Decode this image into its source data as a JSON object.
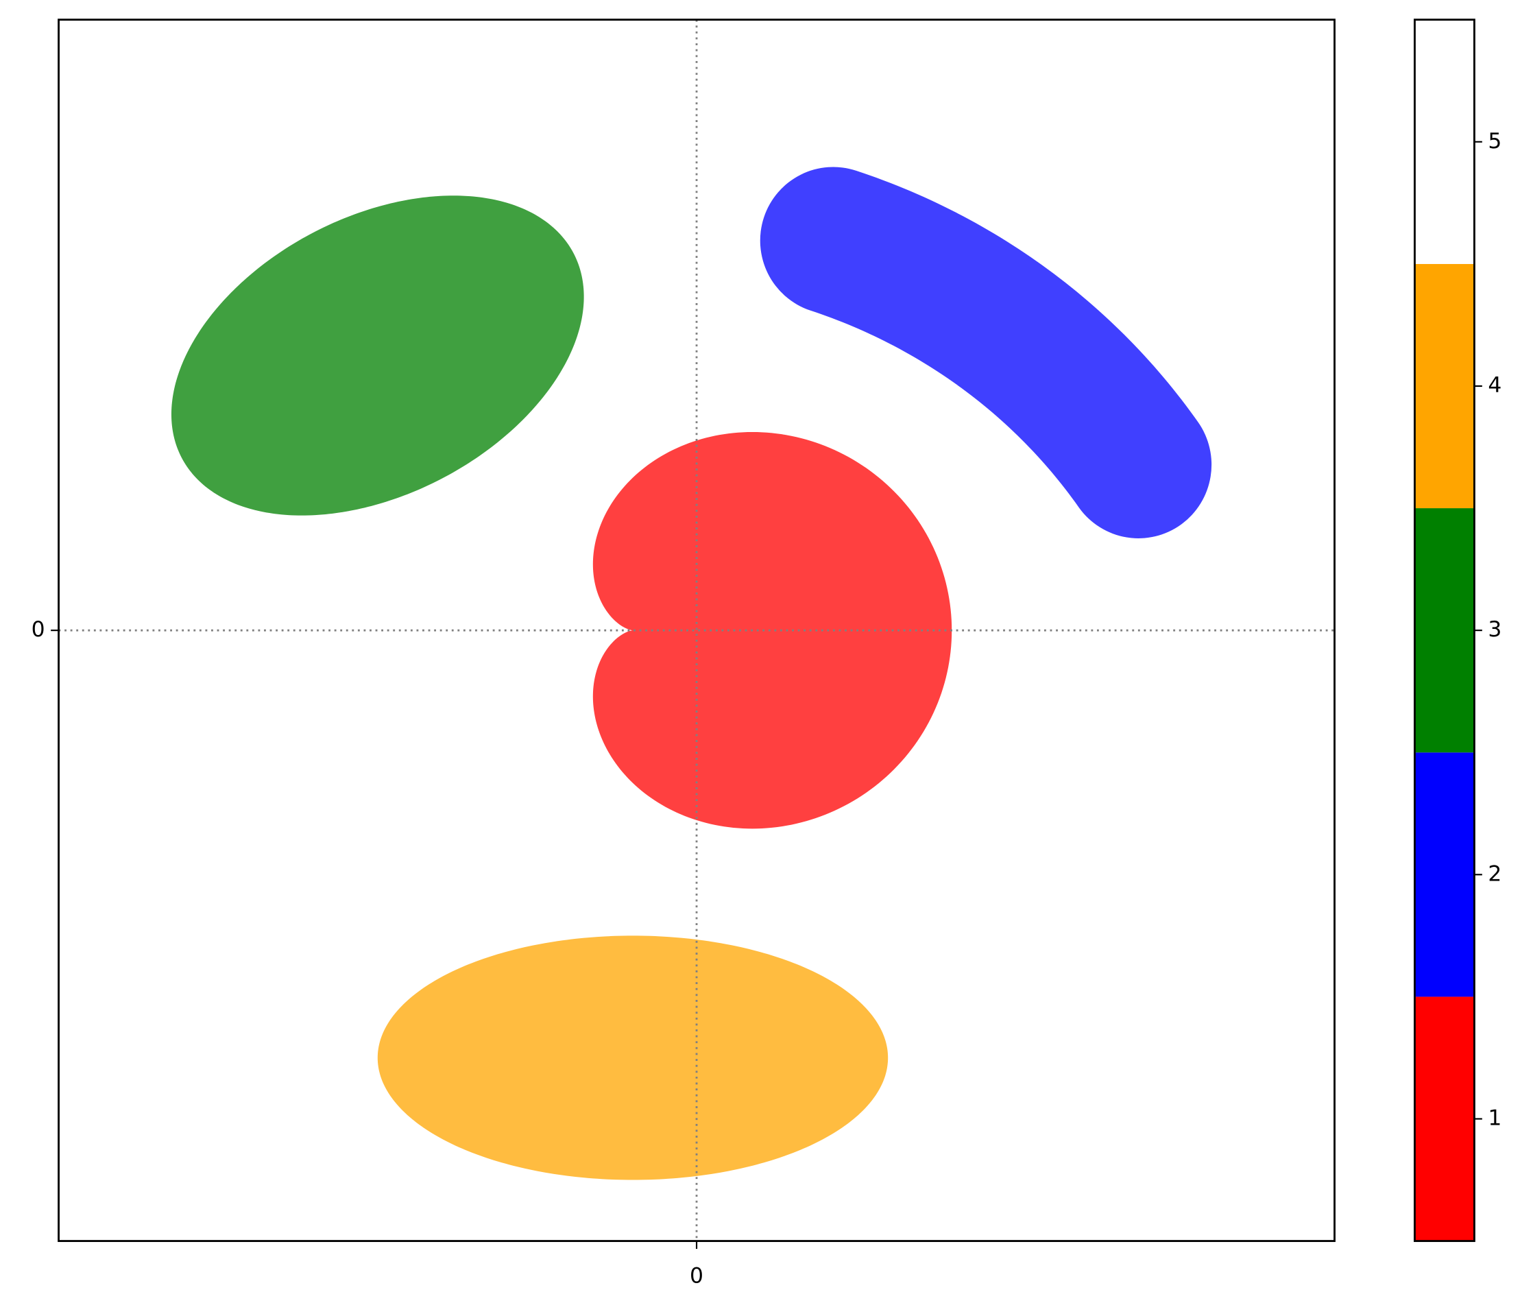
{
  "chart_data": {
    "type": "image",
    "xlim": [
      -2,
      2
    ],
    "ylim": [
      -2,
      2
    ],
    "xticks": [
      0
    ],
    "yticks": [
      0
    ],
    "grid": true,
    "alpha": 0.75,
    "background": 5,
    "regions": [
      {
        "shape": "cardioid",
        "value": 1,
        "cx": -0.2,
        "cy": 0,
        "a": 0.5
      },
      {
        "shape": "arc",
        "value": 2,
        "cx": -0.19,
        "cy": -0.52,
        "r": 1.9,
        "start": 34,
        "end": 71,
        "width": 0.47
      },
      {
        "shape": "ellipse",
        "value": 3,
        "cx": -1.0,
        "cy": 0.9,
        "rx": 0.7,
        "ry": 0.45,
        "angle": 30
      },
      {
        "shape": "ellipse",
        "value": 4,
        "cx": -0.2,
        "cy": -1.4,
        "rx": 0.8,
        "ry": 0.4,
        "angle": 0
      }
    ],
    "colorbar": {
      "colors": [
        "#ff0000",
        "#0000ff",
        "#008000",
        "#ffa500",
        "#ffffff"
      ],
      "clim": [
        0.5,
        5.5
      ],
      "ticks": [
        1,
        2,
        3,
        4,
        5
      ]
    }
  }
}
